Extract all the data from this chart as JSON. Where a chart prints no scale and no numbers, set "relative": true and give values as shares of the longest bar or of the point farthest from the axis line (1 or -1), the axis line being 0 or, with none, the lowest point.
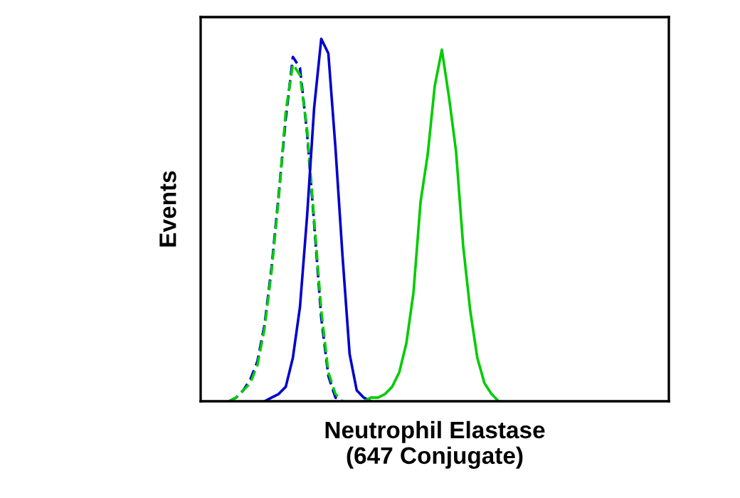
{
  "chart_data": {
    "type": "line",
    "relative": true,
    "xlabel": "Neutrophil Elastase\n(647 Conjugate)",
    "ylabel": "Events",
    "legend": false,
    "tick_labels": false,
    "categories": [
      null,
      null,
      null,
      null,
      null,
      null,
      null,
      null,
      null,
      null,
      null,
      null,
      null,
      null,
      null,
      null,
      null,
      null,
      null,
      null,
      null,
      null,
      null,
      null,
      null,
      null,
      null,
      null,
      null,
      null,
      null,
      null,
      null,
      null,
      null,
      null,
      null,
      null,
      null,
      null,
      null,
      null,
      null,
      null,
      null,
      null,
      null,
      null,
      null,
      null,
      null,
      null,
      null,
      null,
      null,
      null,
      null,
      null,
      null,
      null,
      null,
      null,
      null,
      null,
      null,
      null,
      null
    ],
    "series": [
      {
        "color": "#0000cc",
        "line_style": "dashed",
        "values": [
          null,
          null,
          null,
          null,
          0,
          0.01,
          0.03,
          0.06,
          0.11,
          0.21,
          0.37,
          0.57,
          0.78,
          0.95,
          0.92,
          0.74,
          0.49,
          0.23,
          0.07,
          0.01,
          0,
          null,
          null,
          null,
          null,
          null,
          null,
          null,
          null,
          null,
          null,
          null,
          null,
          null,
          null,
          null,
          null,
          null,
          null,
          null,
          null,
          null,
          null,
          null,
          null,
          null,
          null,
          null,
          null,
          null,
          null,
          null,
          null,
          null,
          null,
          null,
          null,
          null,
          null,
          null,
          null,
          null,
          null,
          null,
          null,
          null,
          null
        ]
      },
      {
        "color": "#00cc00",
        "line_style": "dashed",
        "values": [
          null,
          null,
          null,
          null,
          0,
          0.01,
          0.03,
          0.05,
          0.1,
          0.2,
          0.36,
          0.56,
          0.8,
          0.93,
          0.9,
          0.75,
          0.5,
          0.25,
          0.08,
          0.02,
          0,
          null,
          null,
          null,
          null,
          null,
          null,
          null,
          null,
          null,
          null,
          null,
          null,
          null,
          null,
          null,
          null,
          null,
          null,
          null,
          null,
          null,
          null,
          null,
          null,
          null,
          null,
          null,
          null,
          null,
          null,
          null,
          null,
          null,
          null,
          null,
          null,
          null,
          null,
          null,
          null,
          null,
          null,
          null,
          null,
          null,
          null
        ]
      },
      {
        "color": "#0000cc",
        "line_style": "solid",
        "values": [
          null,
          null,
          null,
          null,
          null,
          null,
          null,
          null,
          null,
          0,
          0.01,
          0.02,
          0.04,
          0.12,
          0.26,
          0.51,
          0.81,
          1,
          0.96,
          0.7,
          0.4,
          0.13,
          0.03,
          0.01,
          0,
          null,
          null,
          null,
          null,
          null,
          null,
          null,
          null,
          null,
          null,
          null,
          null,
          null,
          null,
          null,
          null,
          null,
          null,
          null,
          null,
          null,
          null,
          null,
          null,
          null,
          null,
          null,
          null,
          null,
          null,
          null,
          null,
          null,
          null,
          null,
          null,
          null,
          null,
          null,
          null,
          null,
          null
        ]
      },
      {
        "color": "#00cc00",
        "line_style": "solid",
        "values": [
          null,
          null,
          null,
          null,
          null,
          null,
          null,
          null,
          null,
          null,
          null,
          null,
          null,
          null,
          null,
          null,
          null,
          null,
          null,
          null,
          null,
          null,
          null,
          0,
          0.01,
          0.01,
          0.02,
          0.04,
          0.08,
          0.16,
          0.3,
          0.55,
          0.68,
          0.87,
          0.97,
          0.84,
          0.69,
          0.43,
          0.25,
          0.12,
          0.05,
          0.02,
          0,
          null,
          null,
          null,
          null,
          null,
          null,
          null,
          null,
          null,
          null,
          null,
          null,
          null,
          null,
          null,
          null,
          null,
          null,
          null,
          null,
          null,
          null,
          null,
          null
        ]
      }
    ]
  }
}
